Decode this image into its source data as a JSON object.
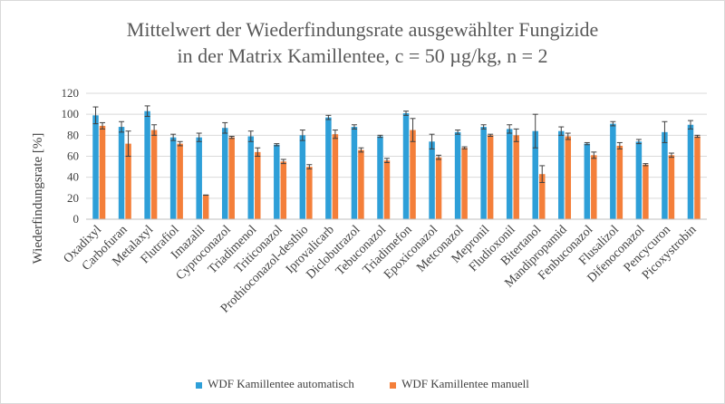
{
  "chart_data": {
    "type": "bar",
    "title_line1": "Mittelwert der Wiederfindungsrate ausgewählter Fungizide",
    "title_line2": "in der Matrix Kamillentee, c = 50 µg/kg, n = 2",
    "ylabel": "Wiederfindungsrate [%]",
    "xlabel": "",
    "ylim": [
      0,
      120
    ],
    "yticks": [
      "0",
      "20",
      "40",
      "60",
      "80",
      "100",
      "120"
    ],
    "grid": true,
    "legend_position": "bottom",
    "colors": {
      "auto": "#2e9fd8",
      "manual": "#f47f3a",
      "grid": "#d9d9d9",
      "error": "#404040"
    },
    "categories": [
      "Oxadixyl",
      "Carbofuran",
      "Metalaxyl",
      "Flutrafiol",
      "Imazalil",
      "Cyproconazol",
      "Triadimenol",
      "Triticonazol",
      "Prothioconazol-desthio",
      "Iprovalicarb",
      "Diclobutrazol",
      "Tebuconazol",
      "Triadimefon",
      "Epoxiconazol",
      "Metconazol",
      "Mepronil",
      "Fludioxonil",
      "Bitertanol",
      "Mandipropamid",
      "Fenbuconazol",
      "Flusalizol",
      "Difenoconazol",
      "Pencycuron",
      "Picoxystrobin"
    ],
    "series": [
      {
        "name": "WDF Kamillentee automatisch",
        "values": [
          99,
          88,
          103,
          78,
          78,
          87,
          79,
          71,
          80,
          97,
          88,
          79,
          101,
          74,
          83,
          88,
          86,
          84,
          84,
          72,
          91,
          74,
          83,
          90
        ],
        "errors": [
          8,
          5,
          5,
          3,
          4,
          5,
          5,
          1,
          5,
          2,
          2,
          1,
          2,
          7,
          2,
          2,
          4,
          16,
          4,
          1,
          2,
          2,
          10,
          4
        ]
      },
      {
        "name": "WDF Kamillentee manuell",
        "values": [
          89,
          72,
          85,
          72,
          23,
          78,
          64,
          55,
          50,
          81,
          66,
          56,
          85,
          59,
          68,
          80,
          80,
          43,
          79,
          61,
          70,
          52,
          61,
          79
        ],
        "errors": [
          3,
          12,
          5,
          2,
          0,
          1,
          4,
          2,
          2,
          4,
          2,
          2,
          11,
          2,
          1,
          1,
          6,
          8,
          3,
          3,
          3,
          1,
          2,
          1
        ]
      }
    ]
  }
}
